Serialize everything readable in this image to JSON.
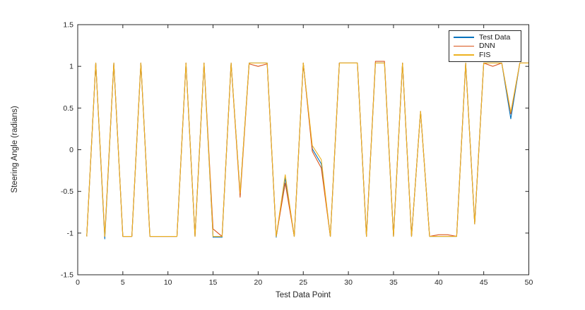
{
  "figure": {
    "background": "#ffffff",
    "axis_color": "#262626",
    "text_color": "#262626"
  },
  "chart_data": {
    "type": "line",
    "title": "",
    "xlabel": "Test Data Point",
    "ylabel": "Steering Angle (radians)",
    "xlim": [
      0,
      50
    ],
    "ylim": [
      -1.5,
      1.5
    ],
    "xticks": [
      0,
      5,
      10,
      15,
      20,
      25,
      30,
      35,
      40,
      45,
      50
    ],
    "yticks": [
      -1.5,
      -1,
      -0.5,
      0,
      0.5,
      1,
      1.5
    ],
    "grid": false,
    "box": true,
    "legend_position": "top-right",
    "x": [
      1,
      2,
      3,
      4,
      5,
      6,
      7,
      8,
      9,
      10,
      11,
      12,
      13,
      14,
      15,
      16,
      17,
      18,
      19,
      20,
      21,
      22,
      23,
      24,
      25,
      26,
      27,
      28,
      29,
      30,
      31,
      32,
      33,
      34,
      35,
      36,
      37,
      38,
      39,
      40,
      41,
      42,
      43,
      44,
      45,
      46,
      47,
      48,
      49,
      50
    ],
    "series": [
      {
        "name": "Test Data",
        "color": "#0072BD",
        "values": [
          -1.04,
          1.04,
          -1.07,
          1.04,
          -1.04,
          -1.04,
          1.04,
          -1.04,
          -1.04,
          -1.04,
          -1.04,
          1.04,
          -1.04,
          1.04,
          -1.05,
          -1.05,
          1.04,
          -0.53,
          1.04,
          1.04,
          1.04,
          -1.05,
          -0.34,
          -1.04,
          1.04,
          0.01,
          -0.17,
          -1.04,
          1.04,
          1.04,
          1.04,
          -1.04,
          1.04,
          1.04,
          -1.04,
          1.04,
          -1.04,
          0.46,
          -1.04,
          -1.04,
          -1.04,
          -1.04,
          1.04,
          -0.89,
          1.04,
          1.04,
          1.04,
          0.37,
          1.04,
          1.04
        ]
      },
      {
        "name": "DNN",
        "color": "#D95319",
        "values": [
          -1.04,
          1.04,
          -1.04,
          1.04,
          -1.04,
          -1.04,
          1.04,
          -1.04,
          -1.04,
          -1.04,
          -1.04,
          1.04,
          -1.04,
          1.04,
          -0.95,
          -1.04,
          1.04,
          -0.57,
          1.03,
          1.0,
          1.03,
          -1.04,
          -0.4,
          -1.04,
          1.04,
          -0.02,
          -0.22,
          -1.04,
          1.04,
          1.04,
          1.04,
          -1.04,
          1.06,
          1.06,
          -1.04,
          1.04,
          -1.04,
          0.46,
          -1.04,
          -1.02,
          -1.02,
          -1.04,
          1.04,
          -0.89,
          1.04,
          1.0,
          1.04,
          0.43,
          1.04,
          1.04
        ]
      },
      {
        "name": "FIS",
        "color": "#EDB120",
        "values": [
          -1.04,
          1.04,
          -1.04,
          1.04,
          -1.04,
          -1.04,
          1.04,
          -1.04,
          -1.04,
          -1.04,
          -1.04,
          1.04,
          -1.04,
          1.04,
          -1.04,
          -1.04,
          1.04,
          -0.52,
          1.04,
          1.04,
          1.04,
          -1.04,
          -0.3,
          -1.04,
          1.04,
          0.05,
          -0.12,
          -1.04,
          1.04,
          1.04,
          1.04,
          -1.04,
          1.04,
          1.04,
          -1.04,
          1.04,
          -1.04,
          0.46,
          -1.04,
          -1.04,
          -1.04,
          -1.04,
          1.04,
          -0.89,
          1.04,
          1.04,
          1.04,
          0.45,
          1.04,
          1.04
        ]
      }
    ]
  }
}
